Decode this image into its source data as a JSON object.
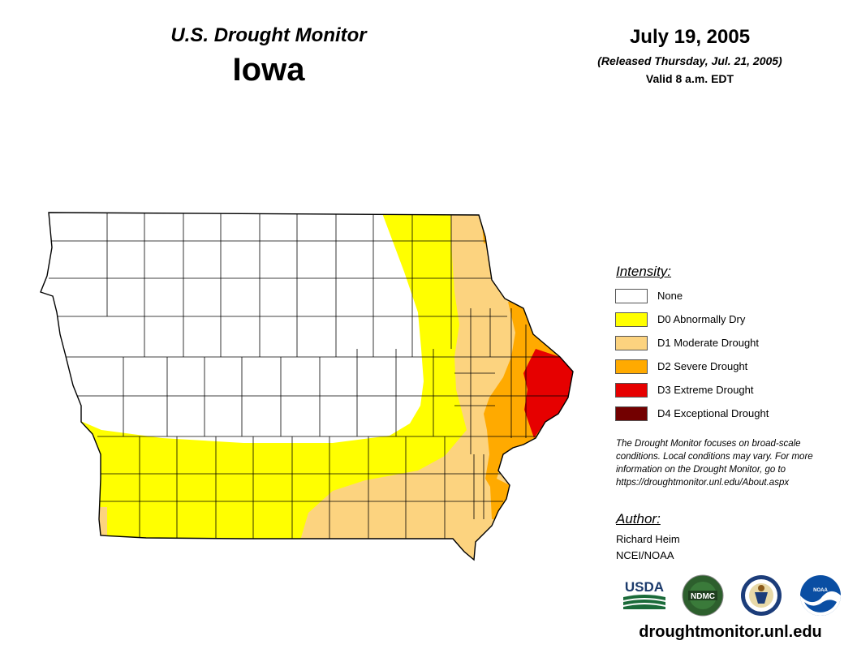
{
  "header": {
    "monitor_title": "U.S. Drought Monitor",
    "state": "Iowa",
    "date": "July 19, 2005",
    "released": "(Released Thursday, Jul. 21, 2005)",
    "valid": "Valid 8 a.m. EDT"
  },
  "legend": {
    "title": "Intensity:",
    "items": [
      {
        "label": "None",
        "color": "#ffffff"
      },
      {
        "label": "D0 Abnormally Dry",
        "color": "#ffff00"
      },
      {
        "label": "D1 Moderate Drought",
        "color": "#fcd37f"
      },
      {
        "label": "D2 Severe Drought",
        "color": "#ffaa00"
      },
      {
        "label": "D3 Extreme Drought",
        "color": "#e60000"
      },
      {
        "label": "D4 Exceptional Drought",
        "color": "#730000"
      }
    ]
  },
  "note": "The Drought Monitor focuses on broad-scale conditions. Local conditions may vary. For more information on the Drought Monitor, go to https://droughtmonitor.unl.edu/About.aspx",
  "author": {
    "title": "Author:",
    "name": "Richard Heim",
    "org": "NCEI/NOAA"
  },
  "logos": {
    "usda": "USDA",
    "ndmc": "NDMC",
    "noaa": "NOAA"
  },
  "website": "droughtmonitor.unl.edu",
  "map_colors": {
    "none": "#ffffff",
    "d0": "#ffff00",
    "d1": "#fcd37f",
    "d2": "#ffaa00",
    "d3": "#e60000",
    "border": "#000000"
  }
}
